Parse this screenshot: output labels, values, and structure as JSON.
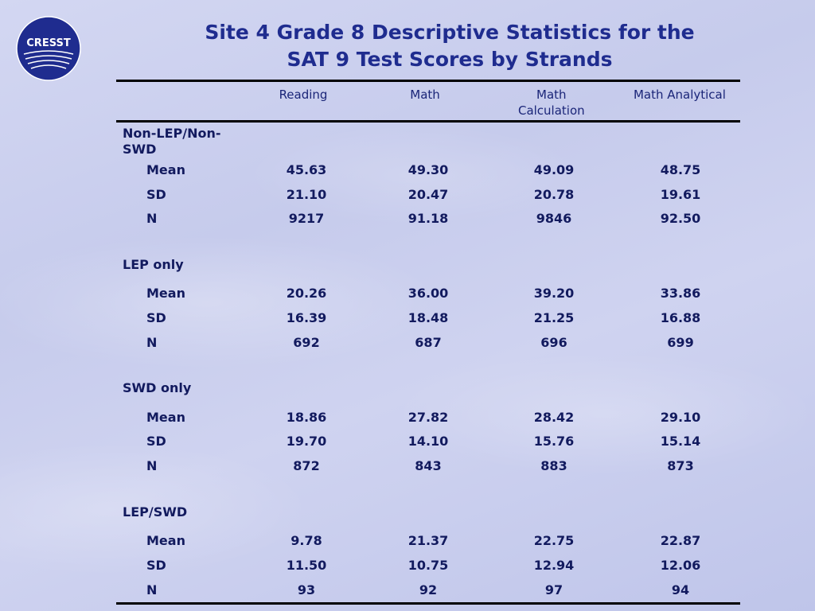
{
  "logo": {
    "text": "CRESST",
    "bg_color": "#1f2c8f"
  },
  "title": {
    "line1": "Site 4 Grade 8 Descriptive Statistics for the",
    "line2": "SAT 9 Test Scores by Strands"
  },
  "columns": [
    "Reading",
    "Math",
    "Math Calculation",
    "Math Analytical"
  ],
  "groups": [
    {
      "label": "Non-LEP/Non-SWD",
      "rows": [
        {
          "stat": "Mean",
          "values": [
            "45.63",
            "49.30",
            "49.09",
            "48.75"
          ]
        },
        {
          "stat": "SD",
          "values": [
            "21.10",
            "20.47",
            "20.78",
            "19.61"
          ]
        },
        {
          "stat": "N",
          "values": [
            "9217",
            "91.18",
            "9846",
            "92.50"
          ]
        }
      ]
    },
    {
      "label": "LEP only",
      "rows": [
        {
          "stat": "Mean",
          "values": [
            "20.26",
            "36.00",
            "39.20",
            "33.86"
          ]
        },
        {
          "stat": "SD",
          "values": [
            "16.39",
            "18.48",
            "21.25",
            "16.88"
          ]
        },
        {
          "stat": "N",
          "values": [
            "692",
            "687",
            "696",
            "699"
          ]
        }
      ]
    },
    {
      "label": "SWD only",
      "rows": [
        {
          "stat": "Mean",
          "values": [
            "18.86",
            "27.82",
            "28.42",
            "29.10"
          ]
        },
        {
          "stat": "SD",
          "values": [
            "19.70",
            "14.10",
            "15.76",
            "15.14"
          ]
        },
        {
          "stat": "N",
          "values": [
            "872",
            "843",
            "883",
            "873"
          ]
        }
      ]
    },
    {
      "label": "LEP/SWD",
      "rows": [
        {
          "stat": "Mean",
          "values": [
            "9.78",
            "21.37",
            "22.75",
            "22.87"
          ]
        },
        {
          "stat": "SD",
          "values": [
            "11.50",
            "10.75",
            "12.94",
            "12.06"
          ]
        },
        {
          "stat": "N",
          "values": [
            "93",
            "92",
            "97",
            "94"
          ]
        }
      ]
    }
  ]
}
